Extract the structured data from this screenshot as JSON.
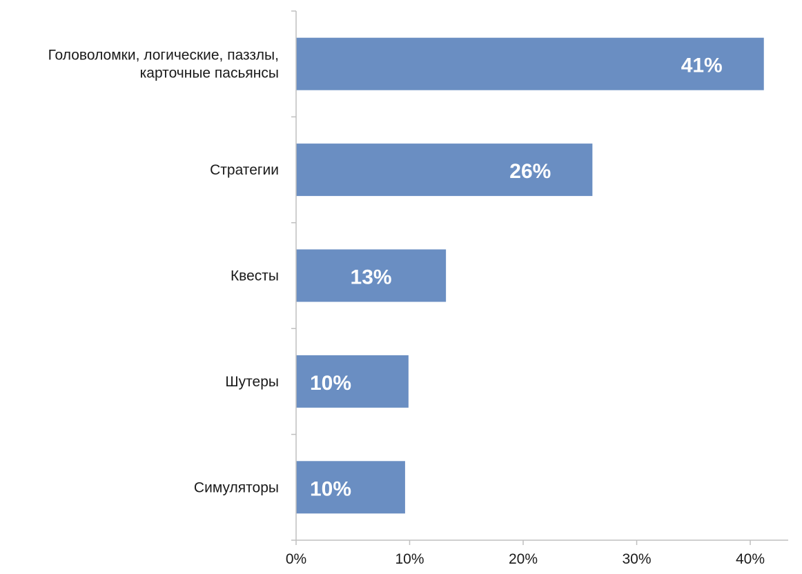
{
  "chart_data": {
    "type": "bar",
    "orientation": "horizontal",
    "categories": [
      [
        "Головоломки, логические, паззлы,",
        "карточные пасьянсы"
      ],
      [
        "Стратегии"
      ],
      [
        "Квесты"
      ],
      [
        "Шутеры"
      ],
      [
        "Симуляторы"
      ]
    ],
    "values": [
      41.2,
      26.1,
      13.2,
      9.9,
      9.6
    ],
    "data_labels": [
      "41%",
      "26%",
      "13%",
      "10%",
      "10%"
    ],
    "xlim": [
      0,
      40
    ],
    "xticks": [
      0,
      10,
      20,
      30,
      40
    ],
    "xtick_labels": [
      "0%",
      "10%",
      "20%",
      "30%",
      "40%"
    ],
    "bar_color": "#6a8ec2",
    "label_color": "#ffffff",
    "title": "",
    "xlabel": "",
    "ylabel": "",
    "grid": false,
    "legend": "none"
  }
}
